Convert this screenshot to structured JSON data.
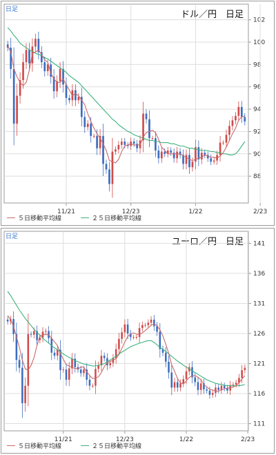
{
  "colors": {
    "up": "#d04a4a",
    "down": "#3b6cc0",
    "ma5": "#c86a6a",
    "ma25": "#3cb27c",
    "grid": "#dddddd",
    "axis": "#999999"
  },
  "chart_data": [
    {
      "type": "candlestick",
      "id": "usd",
      "tag": "日足",
      "title": "ドル／円　日足",
      "ylim": [
        85.6,
        103.4
      ],
      "yticks": [
        "88",
        "90",
        "92",
        "94",
        "96",
        "98",
        "100",
        "102"
      ],
      "xticks": [
        {
          "label": "11/21",
          "index": 19
        },
        {
          "label": "12/23",
          "index": 40
        },
        {
          "label": "1/22",
          "index": 61
        },
        {
          "label": "2/23",
          "index": 82
        }
      ],
      "legend": [
        "５日移動平均線",
        "２５日移動平均線"
      ],
      "closes": [
        99.5,
        97.6,
        92.7,
        95.2,
        96.6,
        98.2,
        99.3,
        98.1,
        99.6,
        100.3,
        99.1,
        98.2,
        97.4,
        98.0,
        96.9,
        95.6,
        96.5,
        97.6,
        96.2,
        95.0,
        94.8,
        95.7,
        94.8,
        95.1,
        93.3,
        92.4,
        92.7,
        91.6,
        91.6,
        90.5,
        91.6,
        89.1,
        88.6,
        87.3,
        90.2,
        90.4,
        90.8,
        91.1,
        90.8,
        90.7,
        91.1,
        90.9,
        90.5,
        91.2,
        93.6,
        93.1,
        91.4,
        91.4,
        90.3,
        89.6,
        90.2,
        90.0,
        90.3,
        90.1,
        89.6,
        90.2,
        89.9,
        89.1,
        89.9,
        88.8,
        89.3,
        90.6,
        89.5,
        90.1,
        89.9,
        89.6,
        89.3,
        89.4,
        89.9,
        91.0,
        91.0,
        91.7,
        92.5,
        93.0,
        93.4,
        94.2,
        93.3,
        92.9
      ],
      "ma5": [
        99.7,
        99.1,
        97.6,
        96.9,
        96.4,
        96.1,
        96.4,
        97.5,
        99.0,
        99.1,
        99.3,
        98.9,
        98.4,
        98.2,
        97.2,
        96.7,
        96.4,
        96.4,
        96.7,
        96.2,
        95.7,
        95.2,
        95.4,
        95.2,
        94.8,
        94.4,
        93.6,
        92.9,
        92.3,
        91.8,
        91.4,
        90.9,
        90.3,
        89.4,
        89.3,
        89.2,
        89.5,
        90.2,
        90.7,
        90.8,
        90.9,
        90.8,
        90.8,
        90.8,
        91.5,
        91.9,
        92.0,
        92.1,
        91.9,
        91.3,
        90.6,
        90.3,
        90.0,
        90.0,
        90.0,
        90.0,
        90.0,
        89.8,
        89.7,
        89.5,
        89.4,
        89.5,
        89.6,
        89.7,
        89.9,
        89.8,
        89.7,
        89.7,
        89.6,
        89.8,
        90.1,
        90.6,
        91.2,
        91.8,
        92.3,
        93.0,
        93.3,
        93.4
      ],
      "ma25": [
        101.3,
        101.0,
        100.6,
        100.3,
        99.9,
        99.7,
        99.5,
        99.3,
        99.2,
        99.0,
        98.9,
        98.8,
        98.6,
        98.5,
        98.3,
        98.1,
        97.9,
        97.7,
        97.5,
        97.3,
        97.0,
        96.8,
        96.6,
        96.4,
        96.1,
        95.8,
        95.5,
        95.2,
        94.9,
        94.6,
        94.3,
        94.0,
        93.7,
        93.4,
        93.1,
        92.9,
        92.6,
        92.4,
        92.2,
        92.0,
        91.9,
        91.7,
        91.6,
        91.5,
        91.4,
        91.3,
        91.2,
        91.2,
        91.1,
        91.1,
        91.0,
        91.0,
        91.0,
        90.9,
        90.9,
        90.8,
        90.7,
        90.7,
        90.6,
        90.5,
        90.5,
        90.4,
        90.4,
        90.3,
        90.3,
        90.3,
        90.2,
        90.2,
        90.1,
        90.1,
        90.0,
        90.0,
        89.9,
        89.9,
        90.0,
        90.3,
        90.7,
        91.1
      ]
    },
    {
      "type": "candlestick",
      "id": "eur",
      "tag": "日足",
      "title": "ユーロ／円　日足",
      "ylim": [
        109.8,
        143.0
      ],
      "yticks": [
        "111",
        "116",
        "121",
        "126",
        "131",
        "136",
        "141"
      ],
      "xticks": [
        {
          "label": "11/21",
          "index": 19
        },
        {
          "label": "12/23",
          "index": 40
        },
        {
          "label": "1/22",
          "index": 61
        },
        {
          "label": "2/23",
          "index": 82
        }
      ],
      "legend": [
        "５日移動平均線",
        "２５日移動平均線"
      ],
      "closes": [
        128.0,
        128.4,
        125.9,
        121.6,
        120.3,
        114.4,
        117.3,
        125.9,
        125.8,
        126.4,
        124.9,
        125.3,
        126.3,
        126.4,
        125.2,
        122.8,
        122.3,
        123.3,
        119.9,
        120.0,
        118.3,
        120.2,
        121.8,
        120.4,
        120.0,
        119.4,
        120.0,
        118.3,
        117.3,
        117.3,
        120.1,
        120.7,
        122.3,
        121.9,
        120.7,
        121.1,
        121.9,
        123.4,
        125.1,
        126.2,
        127.5,
        126.0,
        125.4,
        125.4,
        125.4,
        126.9,
        127.4,
        127.4,
        127.8,
        128.3,
        127.2,
        126.3,
        123.4,
        122.8,
        121.3,
        119.5,
        117.0,
        117.9,
        117.0,
        117.7,
        118.4,
        119.7,
        120.4,
        118.7,
        117.9,
        116.6,
        117.7,
        116.7,
        116.5,
        115.8,
        116.1,
        117.0,
        116.6,
        117.3,
        116.9,
        116.5,
        117.4,
        117.5,
        117.8,
        118.6,
        119.9,
        120.3
      ],
      "ma5": [
        129.0,
        128.3,
        127.2,
        125.4,
        123.7,
        121.6,
        120.1,
        119.9,
        120.7,
        122.0,
        124.0,
        125.6,
        125.8,
        125.8,
        125.8,
        125.2,
        124.6,
        124.0,
        122.7,
        121.7,
        120.8,
        120.6,
        120.3,
        120.2,
        120.1,
        120.4,
        120.4,
        119.6,
        119.0,
        118.5,
        118.6,
        118.8,
        119.5,
        120.5,
        121.2,
        121.3,
        121.6,
        121.8,
        122.5,
        123.5,
        124.6,
        125.5,
        125.9,
        126.1,
        125.9,
        125.8,
        126.1,
        126.5,
        126.9,
        127.4,
        127.6,
        127.3,
        126.6,
        125.6,
        124.2,
        122.7,
        120.8,
        119.7,
        118.5,
        117.8,
        117.6,
        118.1,
        118.7,
        118.9,
        119.0,
        118.7,
        118.3,
        117.5,
        117.1,
        116.7,
        116.6,
        116.4,
        116.4,
        116.6,
        116.8,
        116.9,
        117.0,
        117.1,
        117.3,
        117.8,
        118.4,
        119.0
      ],
      "ma25": [
        133.0,
        132.3,
        131.5,
        130.7,
        129.9,
        129.2,
        128.5,
        127.9,
        127.3,
        126.7,
        126.2,
        125.7,
        125.2,
        124.8,
        124.4,
        124.0,
        123.6,
        123.3,
        122.9,
        122.6,
        122.3,
        122.0,
        121.8,
        121.5,
        121.3,
        121.1,
        120.9,
        120.8,
        120.7,
        120.6,
        120.6,
        120.7,
        120.8,
        121.0,
        121.3,
        121.6,
        121.9,
        122.2,
        122.6,
        122.9,
        123.2,
        123.5,
        123.8,
        124.0,
        124.2,
        124.4,
        124.5,
        124.7,
        124.8,
        124.8,
        124.5,
        124.1,
        123.7,
        123.4,
        123.0,
        122.6,
        122.2,
        121.8,
        121.4,
        121.1,
        120.7,
        120.4,
        120.1,
        119.8,
        119.5,
        119.2,
        118.9,
        118.6,
        118.3,
        118.1,
        117.9,
        117.7,
        117.6,
        117.5,
        117.4,
        117.3,
        117.3,
        117.3,
        117.3,
        117.3,
        117.4,
        117.5
      ]
    }
  ]
}
